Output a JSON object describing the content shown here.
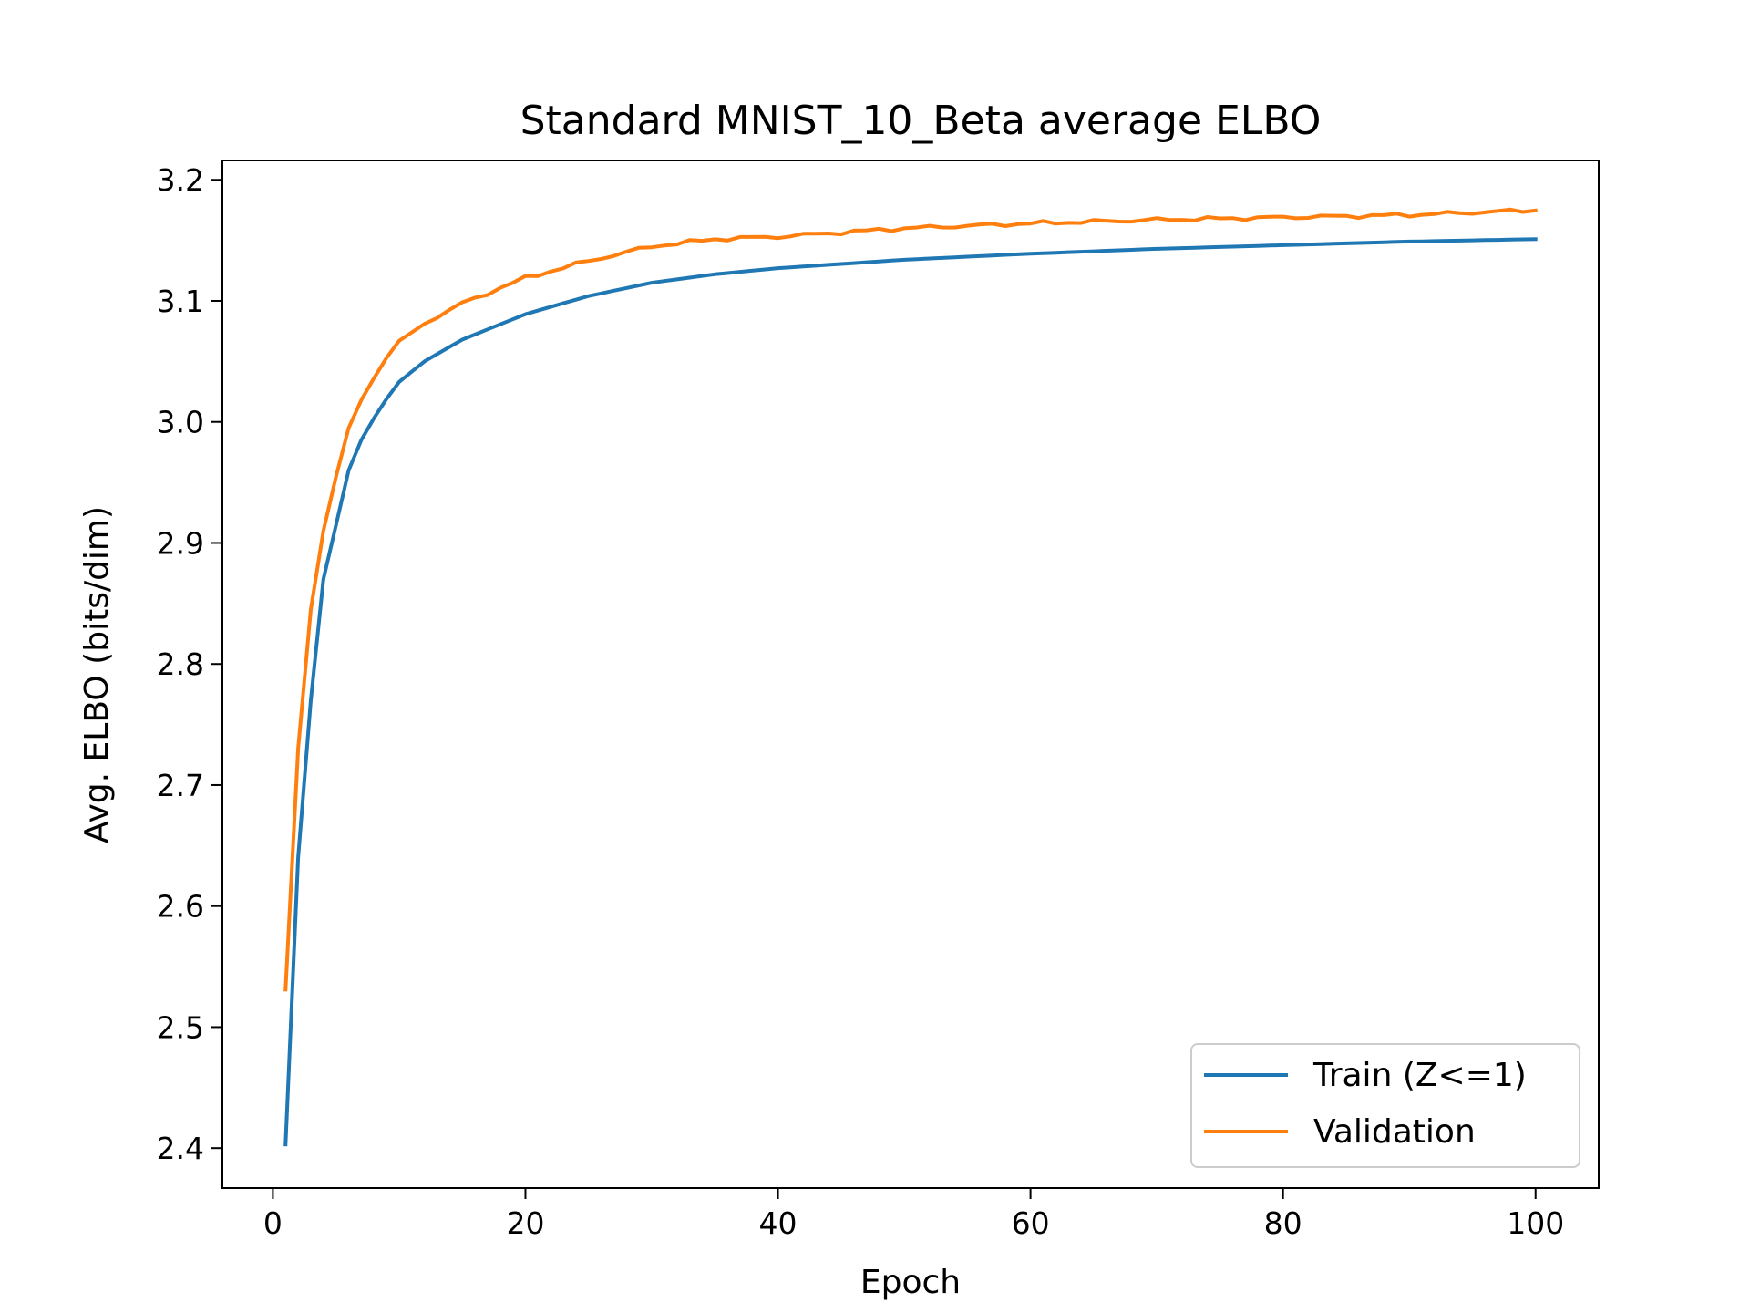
{
  "chart_data": {
    "type": "line",
    "title": "Standard MNIST_10_Beta average ELBO",
    "xlabel": "Epoch",
    "ylabel": "Avg. ELBO (bits/dim)",
    "xlim": [
      -4,
      105
    ],
    "ylim": [
      2.367,
      3.216
    ],
    "xticks": [
      0,
      20,
      40,
      60,
      80,
      100
    ],
    "xtick_labels": [
      "0",
      "20",
      "40",
      "60",
      "80",
      "100"
    ],
    "yticks": [
      2.4,
      2.5,
      2.6,
      2.7,
      2.8,
      2.9,
      3.0,
      3.1,
      3.2
    ],
    "ytick_labels": [
      "2.4",
      "2.5",
      "2.6",
      "2.7",
      "2.8",
      "2.9",
      "3.0",
      "3.1",
      "3.2"
    ],
    "grid": false,
    "legend_position": "bottom-right",
    "series": [
      {
        "name": "Train (Z<=1)",
        "color": "#1f77b4",
        "anchors": [
          [
            1,
            2.403
          ],
          [
            2,
            2.64
          ],
          [
            3,
            2.77
          ],
          [
            4,
            2.87
          ],
          [
            5,
            2.915
          ],
          [
            6,
            2.96
          ],
          [
            7,
            2.985
          ],
          [
            8,
            3.003
          ],
          [
            9,
            3.019
          ],
          [
            10,
            3.033
          ],
          [
            12,
            3.05
          ],
          [
            15,
            3.068
          ],
          [
            20,
            3.089
          ],
          [
            25,
            3.104
          ],
          [
            30,
            3.115
          ],
          [
            35,
            3.122
          ],
          [
            40,
            3.127
          ],
          [
            50,
            3.134
          ],
          [
            60,
            3.139
          ],
          [
            70,
            3.143
          ],
          [
            80,
            3.146
          ],
          [
            90,
            3.149
          ],
          [
            100,
            3.151
          ]
        ]
      },
      {
        "name": "Validation",
        "color": "#ff7f0e",
        "anchors": [
          [
            1,
            2.531
          ],
          [
            2,
            2.73
          ],
          [
            3,
            2.845
          ],
          [
            4,
            2.91
          ],
          [
            5,
            2.955
          ],
          [
            6,
            2.995
          ],
          [
            7,
            3.018
          ],
          [
            8,
            3.036
          ],
          [
            9,
            3.053
          ],
          [
            10,
            3.067
          ],
          [
            12,
            3.081
          ],
          [
            15,
            3.098
          ],
          [
            20,
            3.119
          ],
          [
            25,
            3.133
          ],
          [
            30,
            3.145
          ],
          [
            35,
            3.151
          ],
          [
            40,
            3.153
          ],
          [
            50,
            3.16
          ],
          [
            60,
            3.164
          ],
          [
            70,
            3.167
          ],
          [
            80,
            3.169
          ],
          [
            90,
            3.171
          ],
          [
            100,
            3.175
          ]
        ]
      }
    ]
  }
}
